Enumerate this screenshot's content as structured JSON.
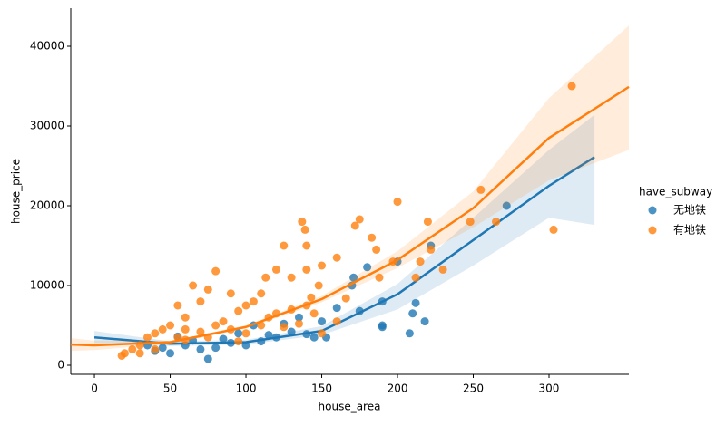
{
  "chart_data": {
    "type": "scatter",
    "x_label": "house_area",
    "y_label": "house_price",
    "legend_title": "have_subway",
    "xlim": [
      -15.6,
      352.7
    ],
    "ylim": [
      -1136,
      44773
    ],
    "xticks": [
      0,
      50,
      100,
      150,
      200,
      250,
      300
    ],
    "yticks": [
      0,
      10000,
      20000,
      30000,
      40000
    ],
    "legend_position": "right",
    "series": [
      {
        "name": "无地铁",
        "color": "#1f77b4",
        "x": [
          272,
          222,
          200,
          180,
          170,
          171,
          190,
          175,
          212,
          210,
          218,
          208,
          190,
          190,
          160,
          145,
          153,
          140,
          130,
          120,
          110,
          100,
          90,
          80,
          75,
          70,
          60,
          50,
          45,
          40,
          35,
          95,
          105,
          115,
          125,
          150,
          135,
          85,
          65,
          55
        ],
        "y": [
          20000,
          15000,
          13000,
          12300,
          10000,
          11000,
          8000,
          6800,
          7800,
          6500,
          5500,
          4000,
          5000,
          4800,
          7200,
          3500,
          3500,
          3900,
          4200,
          3500,
          3000,
          2500,
          2800,
          2200,
          800,
          2000,
          2500,
          1500,
          2200,
          1800,
          2500,
          4000,
          5000,
          3800,
          5200,
          5500,
          6000,
          3300,
          3100,
          3600
        ],
        "fit_x": [
          0,
          50,
          100,
          150,
          200,
          250,
          300,
          330
        ],
        "fit": [
          3500,
          2700,
          2900,
          4300,
          8900,
          15700,
          22500,
          26100
        ],
        "ci_lower": [
          2800,
          2400,
          2600,
          3800,
          7000,
          12500,
          18500,
          17600
        ],
        "ci_upper": [
          4300,
          3000,
          3200,
          4900,
          10200,
          18500,
          27000,
          31400
        ]
      },
      {
        "name": "有地铁",
        "color": "#ff7f0e",
        "x": [
          315,
          303,
          265,
          255,
          248,
          230,
          222,
          220,
          212,
          215,
          200,
          197,
          188,
          186,
          183,
          175,
          172,
          166,
          160,
          150,
          148,
          140,
          139,
          137,
          140,
          143,
          130,
          125,
          120,
          113,
          110,
          105,
          100,
          95,
          90,
          85,
          80,
          75,
          70,
          65,
          60,
          55,
          50,
          45,
          40,
          35,
          30,
          25,
          20,
          18,
          30,
          40,
          55,
          60,
          70,
          80,
          90,
          100,
          110,
          120,
          130,
          140,
          150,
          160,
          60,
          75,
          95,
          115,
          125,
          135,
          145
        ],
        "y": [
          35000,
          17000,
          18000,
          22000,
          18000,
          12000,
          14500,
          18000,
          11000,
          13000,
          20500,
          13000,
          11000,
          14500,
          16000,
          18300,
          17500,
          8400,
          13500,
          12500,
          10000,
          15000,
          17000,
          18000,
          12000,
          8500,
          11000,
          15000,
          12000,
          11000,
          9000,
          8000,
          7500,
          6800,
          9000,
          5500,
          11800,
          9500,
          8000,
          10000,
          6000,
          7500,
          5000,
          4500,
          4000,
          3500,
          2500,
          2000,
          1500,
          1200,
          1500,
          2000,
          3500,
          3200,
          4200,
          5000,
          4500,
          4000,
          5000,
          6500,
          7000,
          7500,
          4000,
          5500,
          4500,
          3500,
          3000,
          6000,
          4800,
          5200,
          6500
        ],
        "fit_x": [
          -15.6,
          0,
          50,
          100,
          150,
          200,
          250,
          300,
          352.7
        ],
        "fit": [
          2600,
          2500,
          2900,
          4800,
          8300,
          13200,
          19700,
          28500,
          34900
        ],
        "ci_lower": [
          1800,
          1900,
          2700,
          4600,
          7900,
          12200,
          17300,
          23200,
          27000
        ],
        "ci_upper": [
          3400,
          3100,
          3100,
          5000,
          8700,
          14300,
          21800,
          33500,
          42600
        ]
      }
    ]
  }
}
